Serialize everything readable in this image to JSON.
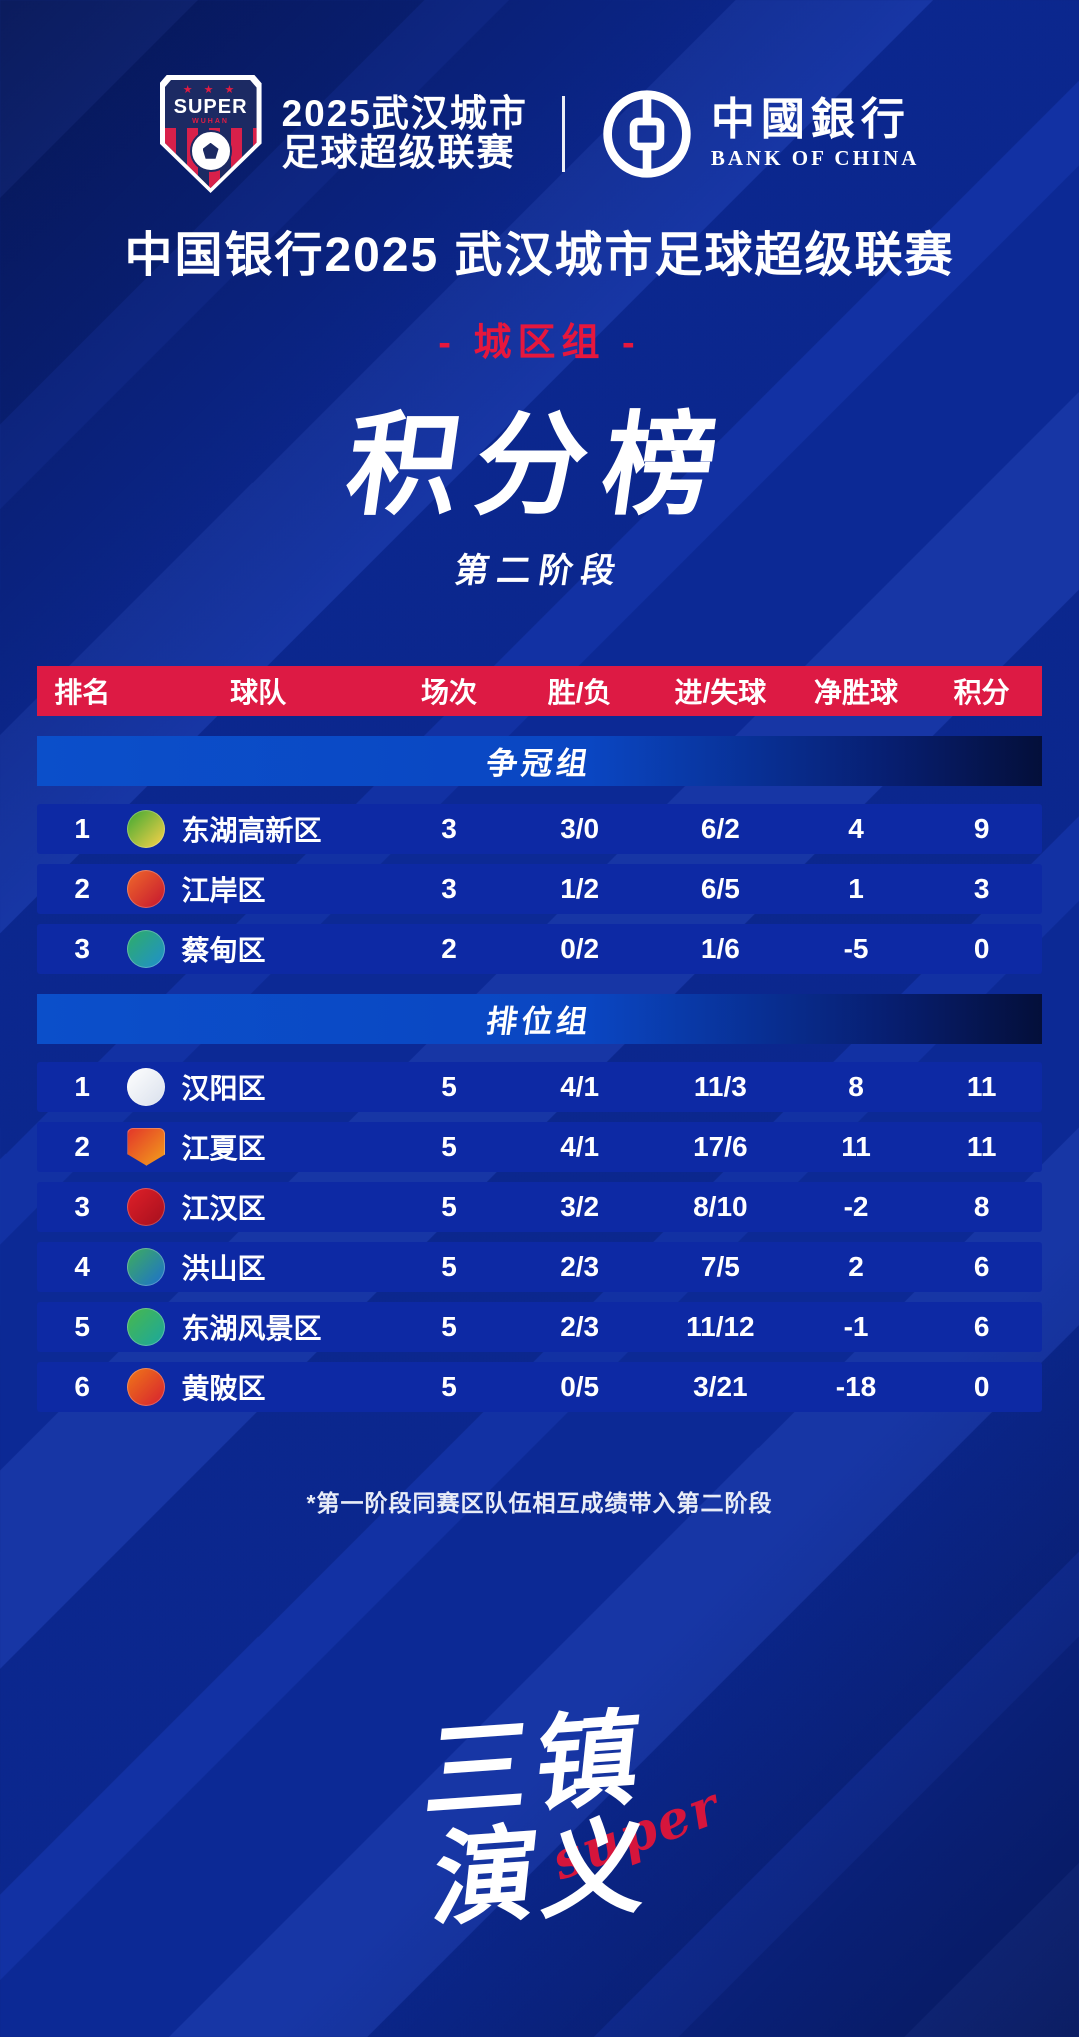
{
  "poster": {
    "league_logo": {
      "stars": "★ ★ ★",
      "top_text": "SUPER",
      "sub_text": "WUHAN",
      "name_line1": "2025武汉城市",
      "name_line2": "足球超级联赛"
    },
    "sponsor": {
      "name_cn": "中國銀行",
      "name_en": "BANK OF CHINA"
    },
    "title": "中国银行2025 武汉城市足球超级联赛",
    "group_badge": "- 城区组 -",
    "main_title": "积分榜",
    "subtitle": "第二阶段",
    "footnote": "*第一阶段同赛区队伍相互成绩带入第二阶段",
    "brand": {
      "line1": "三镇",
      "line2": "演义",
      "script": "super"
    }
  },
  "table": {
    "columns": [
      "排名",
      "球队",
      "场次",
      "胜/负",
      "进/失球",
      "净胜球",
      "积分"
    ],
    "groups": [
      {
        "name": "争冠组",
        "rows": [
          {
            "rank": "1",
            "team": "东湖高新区",
            "played": "3",
            "wl": "3/0",
            "gf_ga": "6/2",
            "gd": "4",
            "pts": "9",
            "logo_shape": "circle",
            "logo_colors": [
              "#3aa832",
              "#ffd24a"
            ]
          },
          {
            "rank": "2",
            "team": "江岸区",
            "played": "3",
            "wl": "1/2",
            "gf_ga": "6/5",
            "gd": "1",
            "pts": "3",
            "logo_shape": "circle",
            "logo_colors": [
              "#f06a2a",
              "#c41430"
            ]
          },
          {
            "rank": "3",
            "team": "蔡甸区",
            "played": "2",
            "wl": "0/2",
            "gf_ga": "1/6",
            "gd": "-5",
            "pts": "0",
            "logo_shape": "circle",
            "logo_colors": [
              "#2fae64",
              "#1f8fd0"
            ]
          }
        ]
      },
      {
        "name": "排位组",
        "rows": [
          {
            "rank": "1",
            "team": "汉阳区",
            "played": "5",
            "wl": "4/1",
            "gf_ga": "11/3",
            "gd": "8",
            "pts": "11",
            "logo_shape": "circle",
            "logo_colors": [
              "#ffffff",
              "#d9e0ec"
            ]
          },
          {
            "rank": "2",
            "team": "江夏区",
            "played": "5",
            "wl": "4/1",
            "gf_ga": "17/6",
            "gd": "11",
            "pts": "11",
            "logo_shape": "shield",
            "logo_colors": [
              "#e3342a",
              "#f3a21b"
            ]
          },
          {
            "rank": "3",
            "team": "江汉区",
            "played": "5",
            "wl": "3/2",
            "gf_ga": "8/10",
            "gd": "-2",
            "pts": "8",
            "logo_shape": "circle",
            "logo_colors": [
              "#e02028",
              "#a50f1e"
            ]
          },
          {
            "rank": "4",
            "team": "洪山区",
            "played": "5",
            "wl": "2/3",
            "gf_ga": "7/5",
            "gd": "2",
            "pts": "6",
            "logo_shape": "circle",
            "logo_colors": [
              "#3fae5a",
              "#1c6fd1"
            ]
          },
          {
            "rank": "5",
            "team": "东湖风景区",
            "played": "5",
            "wl": "2/3",
            "gf_ga": "11/12",
            "gd": "-1",
            "pts": "6",
            "logo_shape": "circle",
            "logo_colors": [
              "#49b84a",
              "#1aa7a0"
            ]
          },
          {
            "rank": "6",
            "team": "黄陂区",
            "played": "5",
            "wl": "0/5",
            "gf_ga": "3/21",
            "gd": "-18",
            "pts": "0",
            "logo_shape": "circle",
            "logo_colors": [
              "#f07818",
              "#d61f30"
            ]
          }
        ]
      }
    ]
  },
  "colors": {
    "background": "#0d2da1",
    "header_red": "#dd1a44",
    "badge_red": "#e6173d",
    "row_blue": "#0d29a4",
    "group_band_from": "#0b4fca",
    "group_band_to": "#040f3a",
    "text": "#ffffff",
    "script_red": "#d6153c"
  },
  "chart_data": [
    {
      "type": "table",
      "title": "争冠组",
      "columns": [
        "排名",
        "球队",
        "场次",
        "胜/负",
        "进/失球",
        "净胜球",
        "积分"
      ],
      "rows": [
        [
          "1",
          "东湖高新区",
          "3",
          "3/0",
          "6/2",
          "4",
          "9"
        ],
        [
          "2",
          "江岸区",
          "3",
          "1/2",
          "6/5",
          "1",
          "3"
        ],
        [
          "3",
          "蔡甸区",
          "2",
          "0/2",
          "1/6",
          "-5",
          "0"
        ]
      ]
    },
    {
      "type": "table",
      "title": "排位组",
      "columns": [
        "排名",
        "球队",
        "场次",
        "胜/负",
        "进/失球",
        "净胜球",
        "积分"
      ],
      "rows": [
        [
          "1",
          "汉阳区",
          "5",
          "4/1",
          "11/3",
          "8",
          "11"
        ],
        [
          "2",
          "江夏区",
          "5",
          "4/1",
          "17/6",
          "11",
          "11"
        ],
        [
          "3",
          "江汉区",
          "5",
          "3/2",
          "8/10",
          "-2",
          "8"
        ],
        [
          "4",
          "洪山区",
          "5",
          "2/3",
          "7/5",
          "2",
          "6"
        ],
        [
          "5",
          "东湖风景区",
          "5",
          "2/3",
          "11/12",
          "-1",
          "6"
        ],
        [
          "6",
          "黄陂区",
          "5",
          "0/5",
          "3/21",
          "-18",
          "0"
        ]
      ]
    }
  ]
}
